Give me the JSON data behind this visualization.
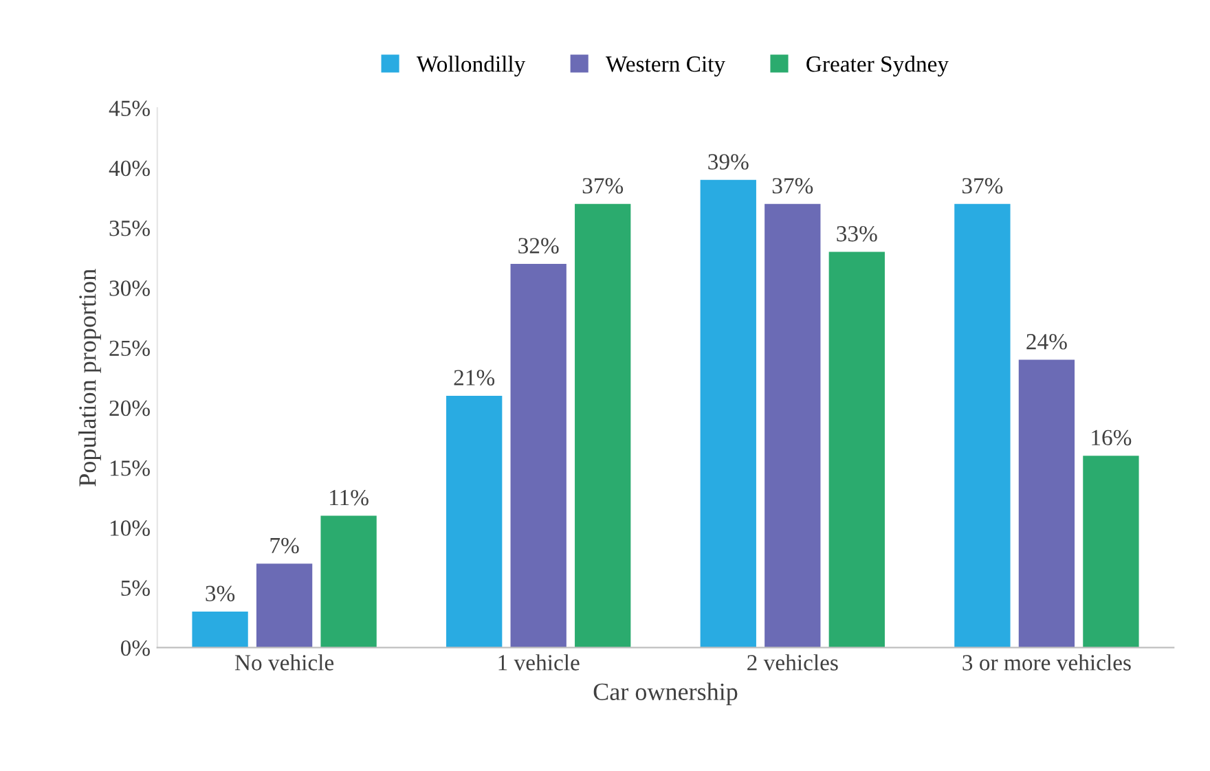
{
  "chart_data": {
    "type": "bar",
    "xlabel": "Car ownership",
    "ylabel": "Population proportion",
    "categories": [
      "No vehicle",
      "1 vehicle",
      "2 vehicles",
      "3 or more vehicles"
    ],
    "series": [
      {
        "name": "Wollondilly",
        "color": "#29abe2",
        "values": [
          3,
          21,
          39,
          37
        ],
        "value_labels": [
          "3%",
          "21%",
          "39%",
          "37%"
        ]
      },
      {
        "name": "Western City",
        "color": "#6b6bb5",
        "values": [
          7,
          32,
          37,
          24
        ],
        "value_labels": [
          "7%",
          "32%",
          "37%",
          "24%"
        ]
      },
      {
        "name": "Greater Sydney",
        "color": "#2bab6e",
        "values": [
          11,
          37,
          33,
          16
        ],
        "value_labels": [
          "11%",
          "37%",
          "33%",
          "16%"
        ]
      }
    ],
    "ylim": [
      0,
      45
    ],
    "yticks": [
      {
        "value": 0,
        "label": "0%"
      },
      {
        "value": 5,
        "label": "5%"
      },
      {
        "value": 10,
        "label": "10%"
      },
      {
        "value": 15,
        "label": "15%"
      },
      {
        "value": 20,
        "label": "20%"
      },
      {
        "value": 25,
        "label": "25%"
      },
      {
        "value": 30,
        "label": "30%"
      },
      {
        "value": 35,
        "label": "35%"
      },
      {
        "value": 40,
        "label": "40%"
      },
      {
        "value": 45,
        "label": "45%"
      }
    ],
    "grid": false,
    "legend": "top"
  }
}
